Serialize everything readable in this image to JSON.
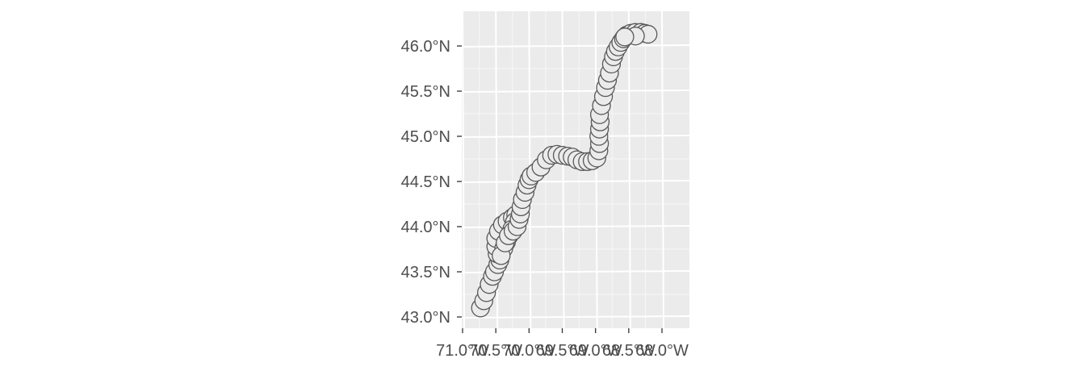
{
  "chart_data": {
    "type": "scatter",
    "title": "",
    "xlabel": "",
    "ylabel": "",
    "xlim": [
      -71.0,
      -68.0
    ],
    "ylim": [
      43.0,
      46.0
    ],
    "x_tick_labels": [
      "71.0°W",
      "70.5°W",
      "70.0°W",
      "69.5°W",
      "69.0°W",
      "68.5°W",
      "68.0°W"
    ],
    "x_tick_values": [
      -71.0,
      -70.5,
      -70.0,
      -69.5,
      -69.0,
      -68.5,
      -68.0
    ],
    "y_tick_labels": [
      "43.0°N",
      "43.5°N",
      "44.0°N",
      "44.5°N",
      "45.0°N",
      "45.5°N",
      "46.0°N"
    ],
    "y_tick_values": [
      43.0,
      43.5,
      44.0,
      44.5,
      45.0,
      45.5,
      46.0
    ],
    "grid": true,
    "legend": "none",
    "colors": {
      "panel_background": "#ebebeb",
      "grid": "#ffffff",
      "point_fill": "#ebebeb",
      "point_stroke": "#595959",
      "tick_text": "#4d4d4d",
      "tick_mark": "#333333"
    },
    "points": [
      {
        "x": -70.73,
        "y": 43.1
      },
      {
        "x": -70.68,
        "y": 43.18
      },
      {
        "x": -70.64,
        "y": 43.27
      },
      {
        "x": -70.6,
        "y": 43.36
      },
      {
        "x": -70.55,
        "y": 43.45
      },
      {
        "x": -70.52,
        "y": 43.5
      },
      {
        "x": -70.47,
        "y": 43.58
      },
      {
        "x": -70.44,
        "y": 43.63
      },
      {
        "x": -70.48,
        "y": 43.7
      },
      {
        "x": -70.5,
        "y": 43.78
      },
      {
        "x": -70.5,
        "y": 43.87
      },
      {
        "x": -70.46,
        "y": 43.95
      },
      {
        "x": -70.4,
        "y": 44.02
      },
      {
        "x": -70.33,
        "y": 44.06
      },
      {
        "x": -70.25,
        "y": 44.1
      },
      {
        "x": -70.2,
        "y": 44.13
      },
      {
        "x": -70.22,
        "y": 44.05
      },
      {
        "x": -70.26,
        "y": 43.97
      },
      {
        "x": -70.3,
        "y": 43.9
      },
      {
        "x": -70.34,
        "y": 43.83
      },
      {
        "x": -70.38,
        "y": 43.76
      },
      {
        "x": -70.42,
        "y": 43.68
      },
      {
        "x": -70.36,
        "y": 43.82
      },
      {
        "x": -70.31,
        "y": 43.9
      },
      {
        "x": -70.24,
        "y": 43.95
      },
      {
        "x": -70.18,
        "y": 44.0
      },
      {
        "x": -70.15,
        "y": 44.08
      },
      {
        "x": -70.13,
        "y": 44.14
      },
      {
        "x": -70.12,
        "y": 44.22
      },
      {
        "x": -70.1,
        "y": 44.3
      },
      {
        "x": -70.06,
        "y": 44.38
      },
      {
        "x": -70.03,
        "y": 44.46
      },
      {
        "x": -70.0,
        "y": 44.52
      },
      {
        "x": -69.97,
        "y": 44.56
      },
      {
        "x": -69.9,
        "y": 44.6
      },
      {
        "x": -69.82,
        "y": 44.66
      },
      {
        "x": -69.74,
        "y": 44.74
      },
      {
        "x": -69.66,
        "y": 44.79
      },
      {
        "x": -69.58,
        "y": 44.8
      },
      {
        "x": -69.5,
        "y": 44.79
      },
      {
        "x": -69.42,
        "y": 44.78
      },
      {
        "x": -69.35,
        "y": 44.77
      },
      {
        "x": -69.28,
        "y": 44.74
      },
      {
        "x": -69.2,
        "y": 44.72
      },
      {
        "x": -69.12,
        "y": 44.72
      },
      {
        "x": -69.05,
        "y": 44.73
      },
      {
        "x": -68.98,
        "y": 44.76
      },
      {
        "x": -68.95,
        "y": 44.84
      },
      {
        "x": -68.94,
        "y": 44.92
      },
      {
        "x": -68.95,
        "y": 45.0
      },
      {
        "x": -68.94,
        "y": 45.08
      },
      {
        "x": -68.93,
        "y": 45.16
      },
      {
        "x": -68.94,
        "y": 45.24
      },
      {
        "x": -68.91,
        "y": 45.34
      },
      {
        "x": -68.88,
        "y": 45.44
      },
      {
        "x": -68.85,
        "y": 45.54
      },
      {
        "x": -68.82,
        "y": 45.62
      },
      {
        "x": -68.79,
        "y": 45.7
      },
      {
        "x": -68.76,
        "y": 45.8
      },
      {
        "x": -68.73,
        "y": 45.88
      },
      {
        "x": -68.7,
        "y": 45.94
      },
      {
        "x": -68.66,
        "y": 45.99
      },
      {
        "x": -68.62,
        "y": 46.04
      },
      {
        "x": -68.58,
        "y": 46.08
      },
      {
        "x": -68.53,
        "y": 46.12
      },
      {
        "x": -68.47,
        "y": 46.14
      },
      {
        "x": -68.4,
        "y": 46.15
      },
      {
        "x": -68.32,
        "y": 46.15
      },
      {
        "x": -68.26,
        "y": 46.14
      },
      {
        "x": -68.21,
        "y": 46.13
      },
      {
        "x": -68.4,
        "y": 46.11
      },
      {
        "x": -68.56,
        "y": 46.1
      }
    ]
  }
}
